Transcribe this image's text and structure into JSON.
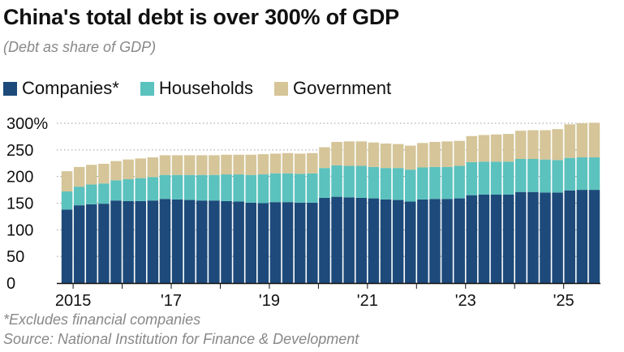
{
  "title": "China's total debt is over 300% of GDP",
  "subtitle": "(Debt as share of GDP)",
  "footnote": "*Excludes financial companies",
  "source": "Source: National Institution for Finance & Development",
  "chart_data": {
    "type": "bar",
    "stacked": true,
    "x_tick_labels": [
      "2015",
      "'17",
      "'19",
      "'21",
      "'23",
      "'25"
    ],
    "y_tick_labels": [
      "0",
      "50",
      "100",
      "150",
      "200",
      "250",
      "300%"
    ],
    "ylim": [
      0,
      300
    ],
    "grid": "dotted horizontal",
    "legend_position": "top",
    "x": [
      "2014Q4",
      "2015Q1",
      "2015Q2",
      "2015Q3",
      "2015Q4",
      "2016Q1",
      "2016Q2",
      "2016Q3",
      "2016Q4",
      "2017Q1",
      "2017Q2",
      "2017Q3",
      "2017Q4",
      "2018Q1",
      "2018Q2",
      "2018Q3",
      "2018Q4",
      "2019Q1",
      "2019Q2",
      "2019Q3",
      "2019Q4",
      "2020Q1",
      "2020Q2",
      "2020Q3",
      "2020Q4",
      "2021Q1",
      "2021Q2",
      "2021Q3",
      "2021Q4",
      "2022Q1",
      "2022Q2",
      "2022Q3",
      "2022Q4",
      "2023Q1",
      "2023Q2",
      "2023Q3",
      "2023Q4",
      "2024Q1",
      "2024Q2",
      "2024Q3",
      "2024Q4",
      "2025Q1",
      "2025Q2",
      "2025Q3"
    ],
    "series": [
      {
        "name": "Companies*",
        "color": "#1d4a7a",
        "values": [
          138,
          146,
          148,
          149,
          155,
          154,
          154,
          155,
          158,
          157,
          156,
          155,
          155,
          154,
          153,
          151,
          150,
          152,
          152,
          151,
          151,
          160,
          162,
          161,
          160,
          159,
          157,
          156,
          153,
          157,
          158,
          158,
          159,
          165,
          166,
          166,
          166,
          171,
          171,
          170,
          170,
          174,
          175,
          175
        ]
      },
      {
        "name": "Households",
        "color": "#5bc2be",
        "values": [
          34,
          35,
          37,
          38,
          38,
          41,
          43,
          44,
          45,
          46,
          47,
          48,
          48,
          50,
          51,
          52,
          54,
          54,
          54,
          54,
          55,
          56,
          59,
          59,
          60,
          59,
          59,
          60,
          60,
          60,
          60,
          60,
          61,
          62,
          62,
          62,
          62,
          62,
          62,
          62,
          61,
          61,
          61,
          61
        ]
      },
      {
        "name": "Government",
        "color": "#d5c598",
        "values": [
          38,
          37,
          37,
          37,
          36,
          37,
          37,
          37,
          37,
          37,
          37,
          37,
          37,
          37,
          37,
          38,
          38,
          37,
          38,
          38,
          38,
          39,
          44,
          46,
          46,
          46,
          46,
          45,
          45,
          46,
          47,
          48,
          47,
          49,
          50,
          51,
          52,
          53,
          54,
          55,
          58,
          63,
          64,
          65
        ]
      }
    ]
  }
}
